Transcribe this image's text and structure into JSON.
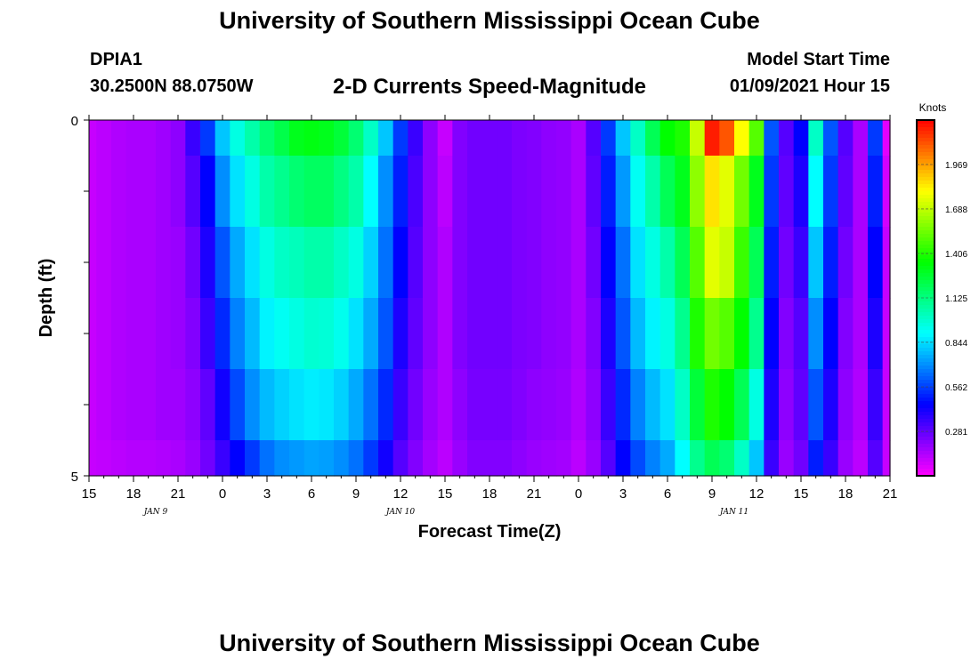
{
  "header": {
    "title": "University of Southern Mississippi Ocean Cube",
    "station_id": "DPIA1",
    "station_coords": "30.2500N 88.0750W",
    "subtitle": "2-D Currents Speed-Magnitude",
    "model_start_label": "Model Start Time",
    "model_start_value": "01/09/2021 Hour 15"
  },
  "footer": {
    "title": "University of Southern Mississippi Ocean Cube"
  },
  "chart_data": {
    "type": "heatmap",
    "title": "2-D Currents Speed-Magnitude",
    "xlabel": "Forecast Time(Z)",
    "ylabel": "Depth (ft)",
    "x_tick_labels": [
      "15",
      "18",
      "21",
      "0",
      "3",
      "6",
      "9",
      "12",
      "15",
      "18",
      "21",
      "0",
      "3",
      "6",
      "9",
      "12",
      "15",
      "18",
      "21"
    ],
    "date_labels": [
      "JAN 9",
      "JAN 10",
      "JAN 11"
    ],
    "y_tick_labels": [
      "0",
      "5"
    ],
    "ylim": [
      0,
      5
    ],
    "colorbar": {
      "unit": "Knots",
      "ticks": [
        "0.281",
        "0.562",
        "0.844",
        "1.125",
        "1.406",
        "1.688",
        "1.969"
      ],
      "range": [
        0,
        2.25
      ]
    },
    "x_hours": [
      15,
      16,
      17,
      18,
      19,
      20,
      21,
      22,
      23,
      0,
      1,
      2,
      3,
      4,
      5,
      6,
      7,
      8,
      9,
      10,
      11,
      12,
      13,
      14,
      15,
      16,
      17,
      18,
      19,
      20,
      21,
      22,
      23,
      0,
      1,
      2,
      3,
      4,
      5,
      6,
      7,
      8,
      9,
      10,
      11,
      12,
      13,
      14,
      15,
      16,
      17,
      18,
      19,
      20,
      21
    ],
    "depth_bins": [
      "0-0.5",
      "0.5-1.5",
      "1.5-2.5",
      "2.5-3.5",
      "3.5-4.5",
      "4.5-5"
    ],
    "values": [
      [
        0.1,
        0.12,
        0.14,
        0.15,
        0.15,
        0.17,
        0.2,
        0.35,
        0.55,
        0.8,
        0.95,
        1.05,
        1.15,
        1.22,
        1.3,
        1.32,
        1.3,
        1.25,
        1.15,
        1.0,
        0.8,
        0.55,
        0.35,
        0.2,
        0.1,
        0.22,
        0.25,
        0.25,
        0.25,
        0.23,
        0.22,
        0.2,
        0.19,
        0.15,
        0.3,
        0.55,
        0.8,
        1.0,
        1.2,
        1.35,
        1.4,
        1.7,
        2.2,
        2.1,
        1.8,
        1.5,
        0.6,
        0.3,
        0.45,
        1.0,
        0.6,
        0.3,
        0.15,
        0.55,
        0.05
      ],
      [
        0.1,
        0.12,
        0.14,
        0.15,
        0.15,
        0.17,
        0.2,
        0.3,
        0.45,
        0.7,
        0.85,
        0.95,
        1.05,
        1.1,
        1.15,
        1.18,
        1.18,
        1.12,
        1.05,
        0.9,
        0.7,
        0.5,
        0.32,
        0.2,
        0.12,
        0.22,
        0.25,
        0.25,
        0.25,
        0.23,
        0.22,
        0.2,
        0.19,
        0.15,
        0.28,
        0.5,
        0.72,
        0.92,
        1.05,
        1.2,
        1.3,
        1.6,
        1.85,
        1.75,
        1.55,
        1.3,
        0.55,
        0.28,
        0.4,
        0.9,
        0.55,
        0.28,
        0.15,
        0.5,
        0.08
      ],
      [
        0.1,
        0.12,
        0.14,
        0.15,
        0.15,
        0.17,
        0.18,
        0.25,
        0.4,
        0.6,
        0.75,
        0.85,
        0.95,
        1.0,
        1.02,
        1.05,
        1.05,
        1.0,
        0.95,
        0.82,
        0.65,
        0.45,
        0.3,
        0.2,
        0.14,
        0.22,
        0.25,
        0.25,
        0.25,
        0.23,
        0.22,
        0.2,
        0.19,
        0.15,
        0.25,
        0.45,
        0.65,
        0.85,
        0.95,
        1.05,
        1.2,
        1.5,
        1.75,
        1.7,
        1.45,
        1.2,
        0.5,
        0.25,
        0.35,
        0.8,
        0.5,
        0.25,
        0.15,
        0.45,
        0.1
      ],
      [
        0.1,
        0.12,
        0.14,
        0.15,
        0.15,
        0.17,
        0.18,
        0.22,
        0.35,
        0.52,
        0.68,
        0.78,
        0.88,
        0.92,
        0.95,
        0.98,
        0.97,
        0.93,
        0.85,
        0.75,
        0.6,
        0.4,
        0.28,
        0.2,
        0.14,
        0.22,
        0.25,
        0.25,
        0.25,
        0.23,
        0.22,
        0.2,
        0.19,
        0.15,
        0.22,
        0.4,
        0.6,
        0.78,
        0.88,
        0.95,
        1.1,
        1.4,
        1.55,
        1.5,
        1.35,
        1.1,
        0.45,
        0.22,
        0.3,
        0.7,
        0.45,
        0.22,
        0.15,
        0.4,
        0.1
      ],
      [
        0.1,
        0.12,
        0.14,
        0.15,
        0.15,
        0.17,
        0.17,
        0.2,
        0.28,
        0.42,
        0.58,
        0.7,
        0.78,
        0.82,
        0.85,
        0.87,
        0.86,
        0.82,
        0.75,
        0.65,
        0.52,
        0.35,
        0.25,
        0.18,
        0.14,
        0.2,
        0.24,
        0.24,
        0.24,
        0.22,
        0.2,
        0.19,
        0.18,
        0.14,
        0.2,
        0.35,
        0.52,
        0.68,
        0.78,
        0.85,
        1.0,
        1.25,
        1.4,
        1.35,
        1.2,
        0.95,
        0.4,
        0.2,
        0.28,
        0.6,
        0.4,
        0.2,
        0.14,
        0.35,
        0.1
      ],
      [
        0.1,
        0.11,
        0.12,
        0.13,
        0.13,
        0.14,
        0.15,
        0.18,
        0.25,
        0.35,
        0.45,
        0.55,
        0.65,
        0.7,
        0.72,
        0.74,
        0.73,
        0.7,
        0.65,
        0.55,
        0.42,
        0.3,
        0.22,
        0.16,
        0.12,
        0.18,
        0.22,
        0.22,
        0.22,
        0.2,
        0.18,
        0.17,
        0.16,
        0.12,
        0.18,
        0.3,
        0.45,
        0.58,
        0.68,
        0.75,
        0.9,
        1.1,
        1.2,
        1.15,
        1.0,
        0.8,
        0.35,
        0.18,
        0.25,
        0.5,
        0.35,
        0.18,
        0.12,
        0.3,
        0.1
      ]
    ]
  }
}
